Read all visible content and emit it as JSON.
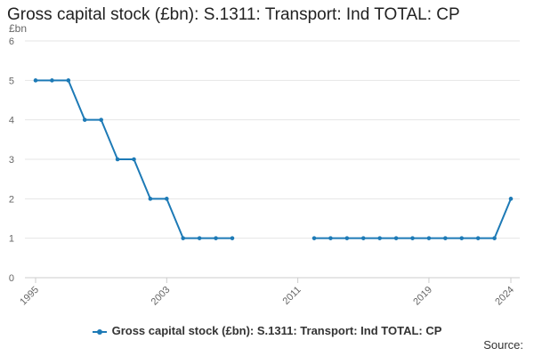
{
  "colors": {
    "series": "#1d7ab6",
    "grid": "#e6e6e6",
    "axis": "#cccccc",
    "text": "#666666"
  },
  "footer": {
    "source_label": "Source:"
  },
  "chart_data": {
    "type": "line",
    "title": "Gross capital stock (£bn): S.1311: Transport: Ind TOTAL: CP",
    "ylabel": "£bn",
    "xlabel": "",
    "xlim": [
      1995,
      2024
    ],
    "ylim": [
      0,
      6
    ],
    "yticks": [
      0,
      1,
      2,
      3,
      4,
      5,
      6
    ],
    "xticks": [
      1995,
      2003,
      2011,
      2019,
      2024
    ],
    "grid": true,
    "legend_position": "bottom",
    "series": [
      {
        "name": "Gross capital stock (£bn): S.1311: Transport: Ind TOTAL: CP",
        "points": [
          [
            1995,
            5
          ],
          [
            1996,
            5
          ],
          [
            1997,
            5
          ],
          [
            1998,
            4
          ],
          [
            1999,
            4
          ],
          [
            2000,
            3
          ],
          [
            2001,
            3
          ],
          [
            2002,
            2
          ],
          [
            2003,
            2
          ],
          [
            2004,
            1
          ],
          [
            2005,
            1
          ],
          [
            2006,
            1
          ],
          [
            2007,
            1
          ],
          [
            2008,
            null
          ],
          [
            2009,
            null
          ],
          [
            2010,
            null
          ],
          [
            2011,
            null
          ],
          [
            2012,
            1
          ],
          [
            2013,
            1
          ],
          [
            2014,
            1
          ],
          [
            2015,
            1
          ],
          [
            2016,
            1
          ],
          [
            2017,
            1
          ],
          [
            2018,
            1
          ],
          [
            2019,
            1
          ],
          [
            2020,
            1
          ],
          [
            2021,
            1
          ],
          [
            2022,
            1
          ],
          [
            2023,
            1
          ],
          [
            2024,
            2
          ]
        ]
      }
    ]
  }
}
